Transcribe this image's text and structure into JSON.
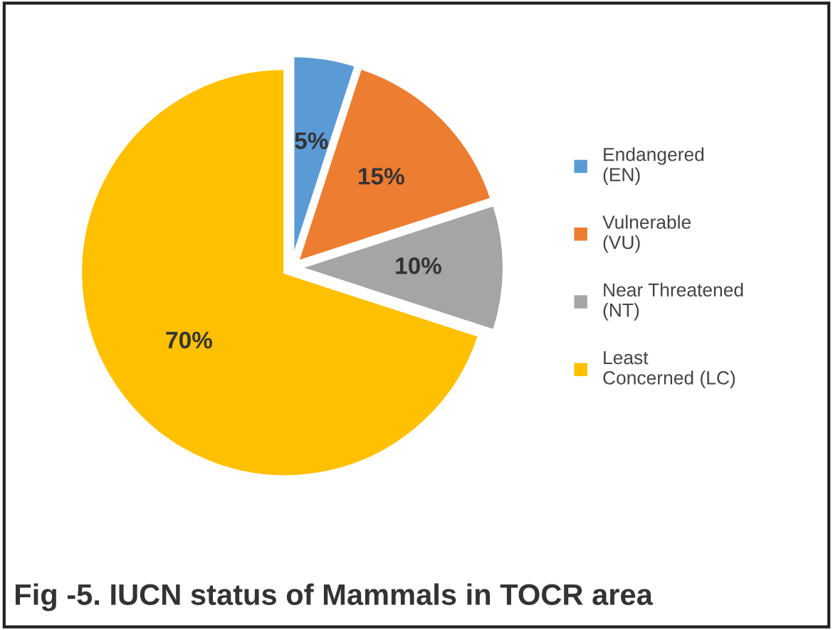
{
  "chart_data": {
    "type": "pie",
    "title": "Fig -5. IUCN status of Mammals in TOCR area",
    "categories": [
      "Endangered (EN)",
      "Vulnerable (VU)",
      "Near Threatened (NT)",
      "Least Concerned (LC)"
    ],
    "values": [
      5,
      15,
      10,
      70
    ],
    "colors": [
      "#5b9bd5",
      "#ed7d31",
      "#a5a5a5",
      "#ffc000"
    ],
    "value_labels": [
      "5%",
      "15%",
      "10%",
      "70%"
    ],
    "legend": "right"
  }
}
